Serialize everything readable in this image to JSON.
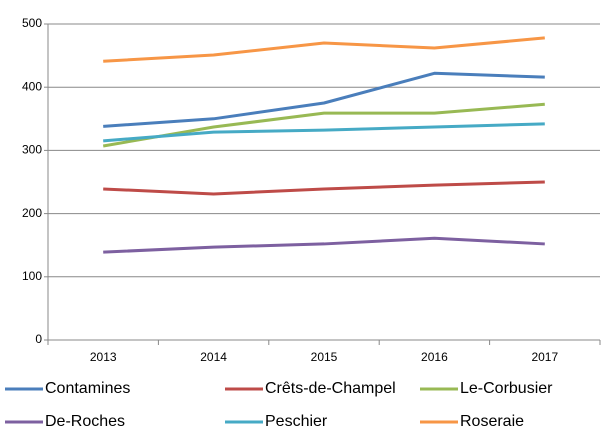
{
  "chart_data": {
    "type": "line",
    "categories": [
      "2013",
      "2014",
      "2015",
      "2016",
      "2017"
    ],
    "series": [
      {
        "name": "Contamines",
        "color": "#4a7ebb",
        "values": [
          338,
          350,
          375,
          422,
          416
        ]
      },
      {
        "name": "Crêts-de-Champel",
        "color": "#be4b48",
        "values": [
          239,
          231,
          239,
          245,
          250
        ]
      },
      {
        "name": "Le-Corbusier",
        "color": "#98b954",
        "values": [
          307,
          337,
          359,
          359,
          373
        ]
      },
      {
        "name": "De-Roches",
        "color": "#7d60a0",
        "values": [
          139,
          147,
          152,
          161,
          152
        ]
      },
      {
        "name": "Peschier",
        "color": "#46aac5",
        "values": [
          315,
          329,
          332,
          337,
          342
        ]
      },
      {
        "name": "Roseraie",
        "color": "#f79646",
        "values": [
          441,
          451,
          470,
          462,
          478
        ]
      }
    ],
    "ylim": [
      0,
      500
    ],
    "yticks": [
      0,
      100,
      200,
      300,
      400,
      500
    ],
    "grid": true,
    "legend": "bottom"
  }
}
